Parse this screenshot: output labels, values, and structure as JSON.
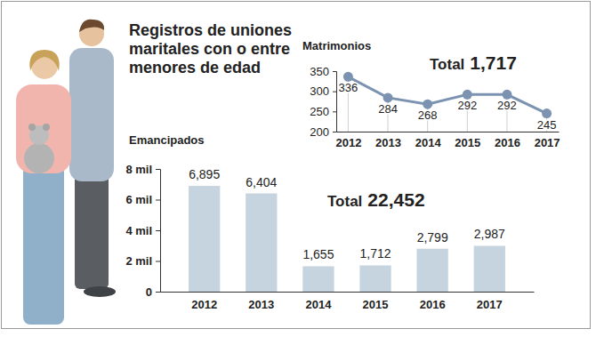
{
  "title": "Registros de uniones maritales con o entre menores de edad",
  "chart_data": [
    {
      "type": "line",
      "title": "Matrimonios",
      "categories": [
        "2012",
        "2013",
        "2014",
        "2015",
        "2016",
        "2017"
      ],
      "values": [
        336,
        284,
        268,
        292,
        292,
        245
      ],
      "color": "#7b93b0",
      "marker": "circle",
      "ylim": [
        200,
        350
      ],
      "yticks": [
        200,
        250,
        300,
        350
      ],
      "data_labels": true,
      "annotations": [
        "Total",
        "1,717"
      ]
    },
    {
      "type": "bar",
      "title": "Emancipados",
      "categories": [
        "2012",
        "2013",
        "2014",
        "2015",
        "2016",
        "2017"
      ],
      "values": [
        6895,
        6404,
        1655,
        1712,
        2799,
        2987
      ],
      "value_labels": [
        "6,895",
        "6,404",
        "1,655",
        "1,712",
        "2,799",
        "2,987"
      ],
      "color": "#c6d4df",
      "ylim": [
        0,
        8000
      ],
      "yticks": [
        0,
        {
          "value": 2000,
          "label": "2 mil"
        },
        {
          "value": 4000,
          "label": "4 mil"
        },
        {
          "value": 6000,
          "label": "6 mil"
        },
        {
          "value": 8000,
          "label": "8 mil"
        }
      ],
      "data_labels": true,
      "annotations": [
        "Total",
        "22,452"
      ]
    }
  ]
}
